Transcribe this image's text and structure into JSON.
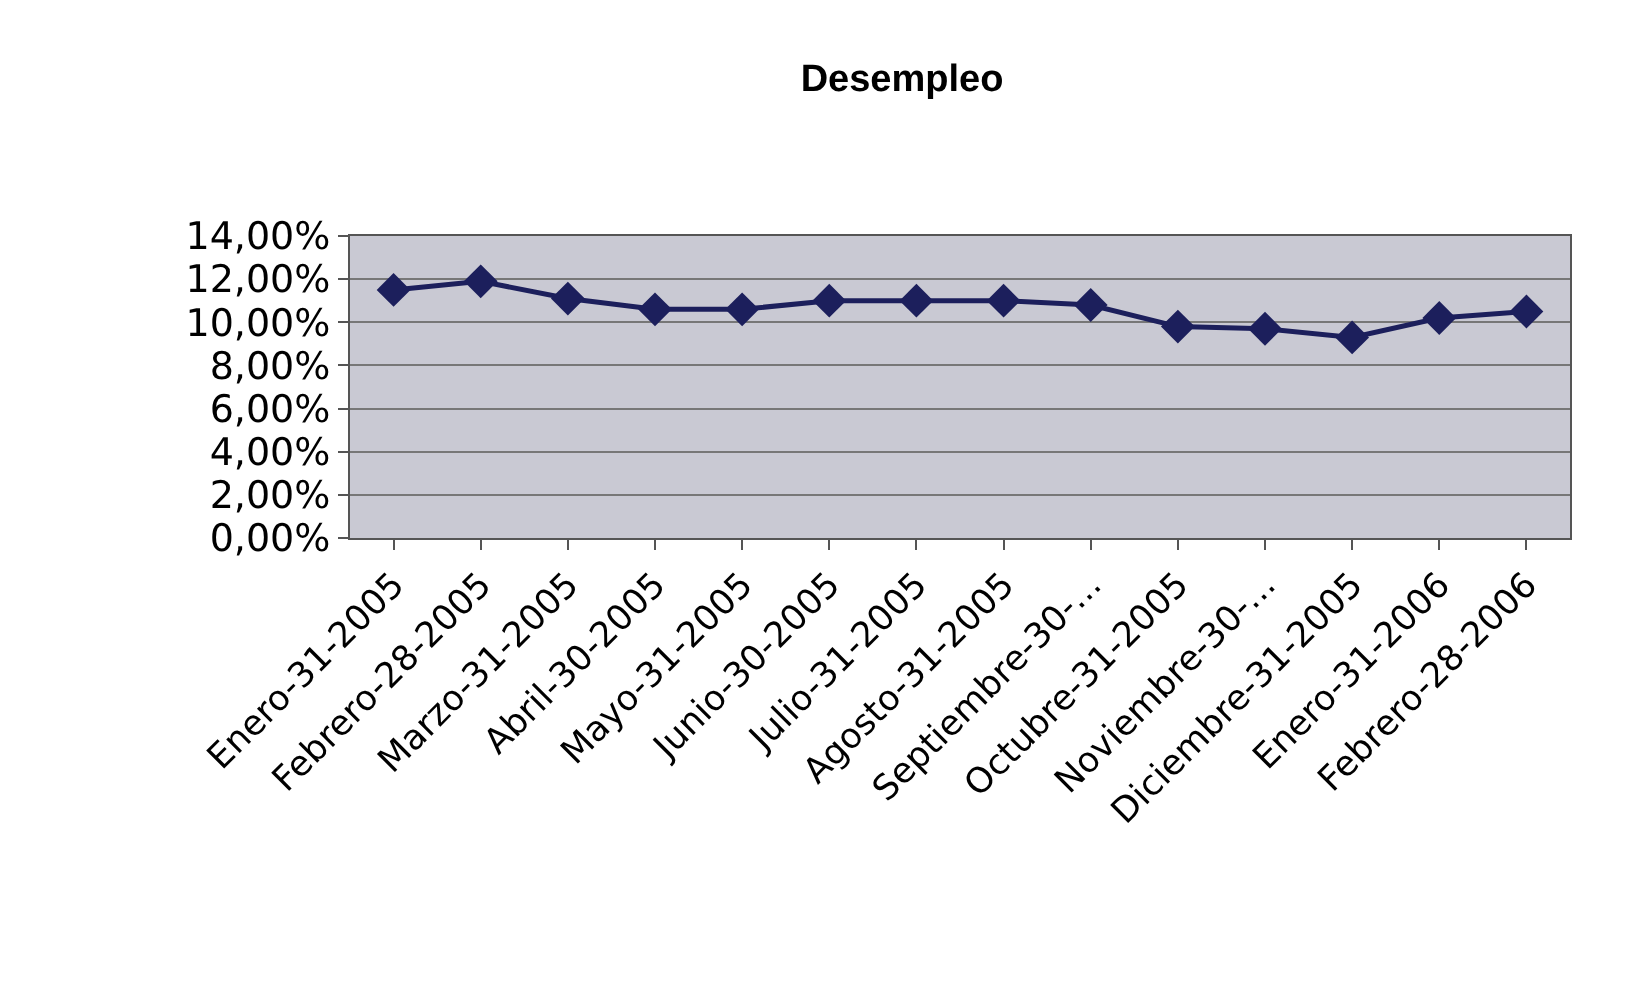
{
  "chart_data": {
    "type": "line",
    "title": "Desempleo",
    "categories": [
      "Enero-31-2005",
      "Febrero-28-2005",
      "Marzo-31-2005",
      "Abril-30-2005",
      "Mayo-31-2005",
      "Junio-30-2005",
      "Julio-31-2005",
      "Agosto-31-2005",
      "Septiembre-30-...",
      "Octubre-31-2005",
      "Noviembre-30-...",
      "Diciembre-31-2005",
      "Enero-31-2006",
      "Febrero-28-2006"
    ],
    "series": [
      {
        "color": "#1c1f5c",
        "values": [
          11.5,
          11.9,
          11.1,
          10.6,
          10.6,
          11.0,
          11.0,
          11.0,
          10.8,
          9.8,
          9.7,
          9.3,
          10.2,
          10.5
        ]
      }
    ],
    "ylim": [
      0,
      14
    ],
    "yticks": [
      {
        "value": 0,
        "label": "0,00%"
      },
      {
        "value": 2,
        "label": "2,00%"
      },
      {
        "value": 4,
        "label": "4,00%"
      },
      {
        "value": 6,
        "label": "6,00%"
      },
      {
        "value": 8,
        "label": "8,00%"
      },
      {
        "value": 10,
        "label": "10,00%"
      },
      {
        "value": 12,
        "label": "12,00%"
      },
      {
        "value": 14,
        "label": "14,00%"
      }
    ],
    "grid": "y",
    "marker": "diamond",
    "line_style": "solid"
  }
}
